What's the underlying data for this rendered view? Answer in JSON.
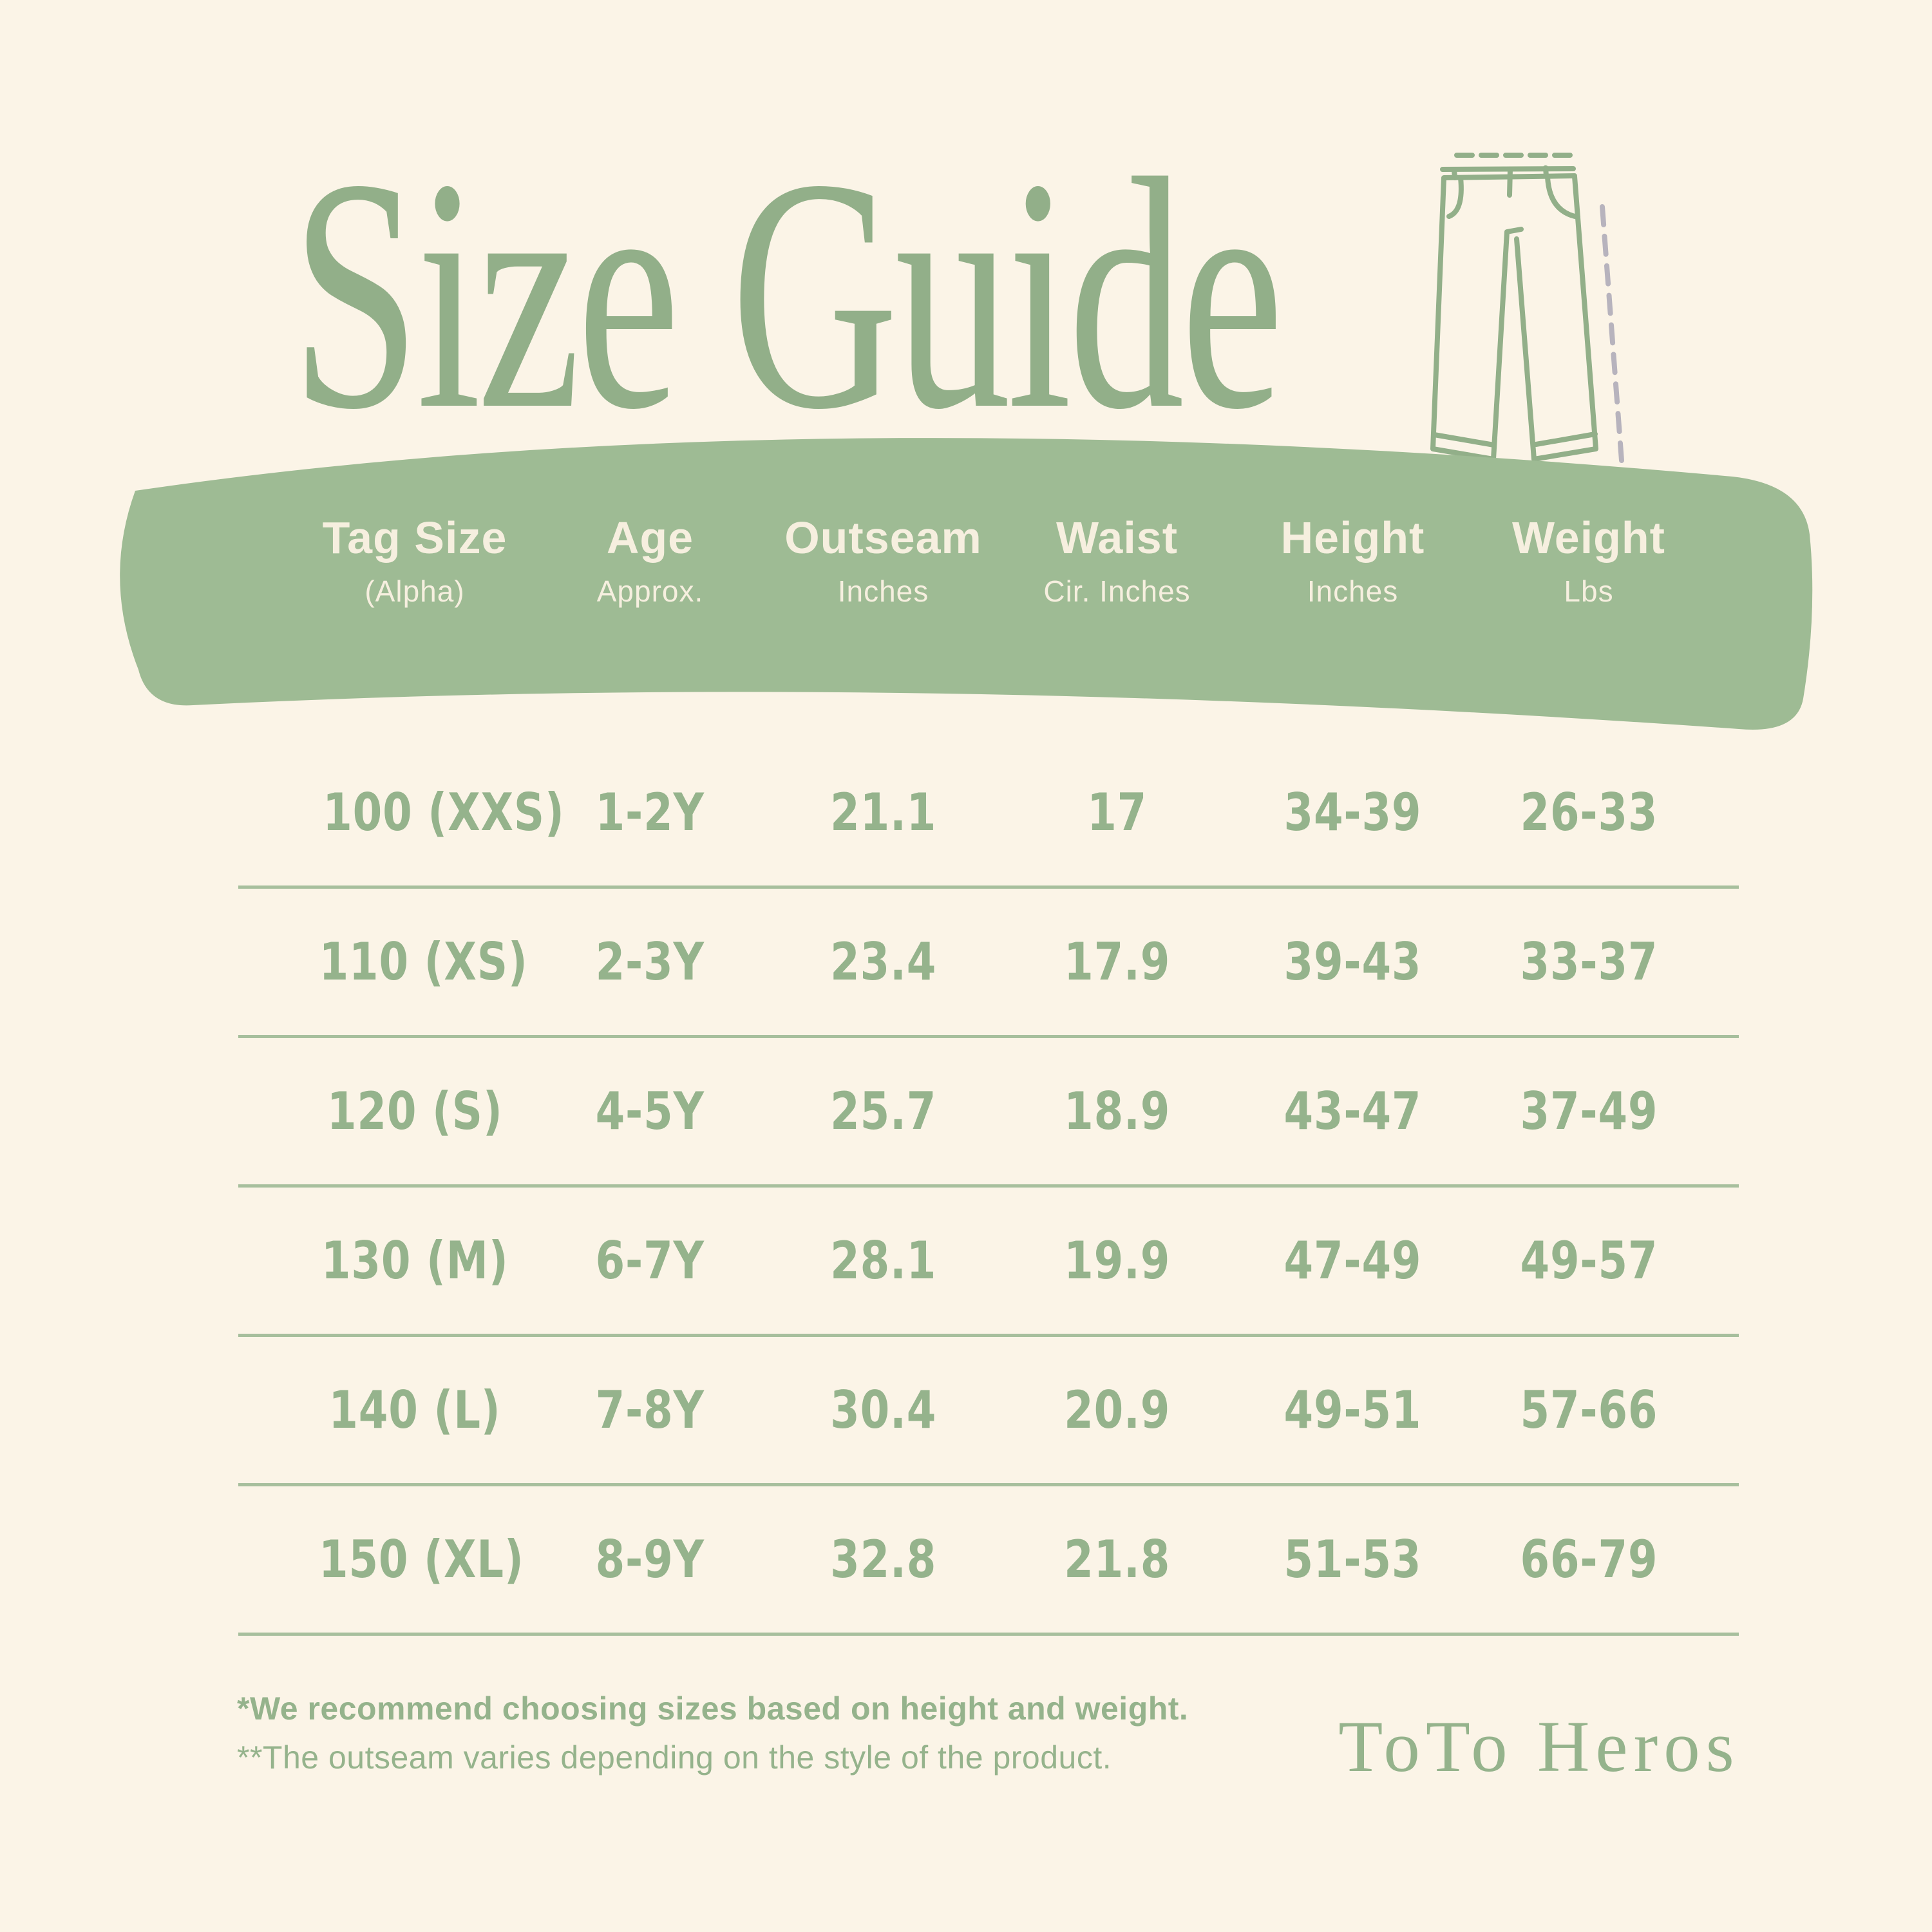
{
  "title": "Size Guide",
  "header": {
    "columns": [
      {
        "label": "Tag Size",
        "sub": "(Alpha)"
      },
      {
        "label": "Age",
        "sub": "Approx."
      },
      {
        "label": "Outseam",
        "sub": "Inches"
      },
      {
        "label": "Waist",
        "sub": "Cir. Inches"
      },
      {
        "label": "Height",
        "sub": "Inches"
      },
      {
        "label": "Weight",
        "sub": "Lbs"
      }
    ]
  },
  "table": {
    "rows": [
      [
        "100 (XXS)",
        "1-2Y",
        "21.1",
        "17",
        "34-39",
        "26-33"
      ],
      [
        "110 (XS)",
        "2-3Y",
        "23.4",
        "17.9",
        "39-43",
        "33-37"
      ],
      [
        "120 (S)",
        "4-5Y",
        "25.7",
        "18.9",
        "43-47",
        "37-49"
      ],
      [
        "130 (M)",
        "6-7Y",
        "28.1",
        "19.9",
        "47-49",
        "49-57"
      ],
      [
        "140 (L)",
        "7-8Y",
        "30.4",
        "20.9",
        "49-51",
        "57-66"
      ],
      [
        "150 (XL)",
        "8-9Y",
        "32.8",
        "21.8",
        "51-53",
        "66-79"
      ]
    ]
  },
  "footnotes": {
    "line1": "*We recommend choosing sizes based on height and weight.",
    "line2": "**The outseam varies depending on the style of the product."
  },
  "brand": "ToTo Heros",
  "icons": {
    "pants": "pants-outline-with-waist-and-outseam-measure-dashes"
  },
  "colors": {
    "background": "#fbf4e7",
    "band": "#9ebb94",
    "title_green": "#92af89",
    "text_green": "#95b38c",
    "header_text": "#f6efdf",
    "divider": "#a7bf9d",
    "measure_dash_gray": "#b7b3bd"
  },
  "chart_data": {
    "type": "table",
    "title": "Size Guide",
    "columns": [
      "Tag Size (Alpha)",
      "Age Approx.",
      "Outseam Inches",
      "Waist Cir. Inches",
      "Height Inches",
      "Weight Lbs"
    ],
    "rows": [
      [
        "100 (XXS)",
        "1-2Y",
        "21.1",
        "17",
        "34-39",
        "26-33"
      ],
      [
        "110 (XS)",
        "2-3Y",
        "23.4",
        "17.9",
        "39-43",
        "33-37"
      ],
      [
        "120 (S)",
        "4-5Y",
        "25.7",
        "18.9",
        "43-47",
        "37-49"
      ],
      [
        "130 (M)",
        "6-7Y",
        "28.1",
        "19.9",
        "47-49",
        "49-57"
      ],
      [
        "140 (L)",
        "7-8Y",
        "30.4",
        "20.9",
        "49-51",
        "57-66"
      ],
      [
        "150 (XL)",
        "8-9Y",
        "32.8",
        "21.8",
        "51-53",
        "66-79"
      ]
    ]
  }
}
